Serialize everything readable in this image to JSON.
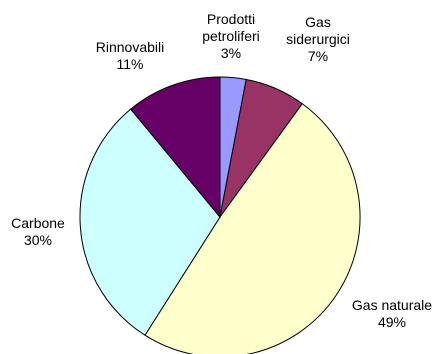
{
  "chart_data": {
    "type": "pie",
    "title": "",
    "categories": [
      "Prodotti petroliferi",
      "Gas siderurgici",
      "Gas naturale",
      "Carbone",
      "Rinnovabili"
    ],
    "values": [
      3,
      7,
      49,
      30,
      11
    ],
    "colors": [
      "#9999ff",
      "#993366",
      "#ffffcc",
      "#ccffff",
      "#660066"
    ],
    "start_angle": 0,
    "direction": "clockwise",
    "labels": [
      {
        "lines": [
          "Prodotti",
          "petroliferi"
        ],
        "percent": "3%"
      },
      {
        "lines": [
          "Gas",
          "siderurgici"
        ],
        "percent": "7%"
      },
      {
        "lines": [
          "Gas naturale"
        ],
        "percent": "49%"
      },
      {
        "lines": [
          "Carbone"
        ],
        "percent": "30%"
      },
      {
        "lines": [
          "Rinnovabili"
        ],
        "percent": "11%"
      }
    ]
  }
}
